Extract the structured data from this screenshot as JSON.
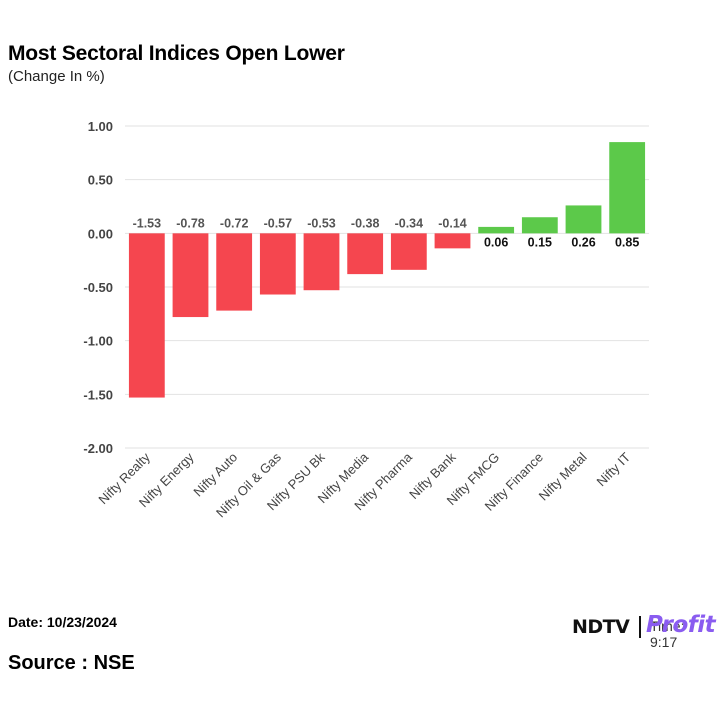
{
  "header": {
    "title": "Most Sectoral Indices Open Lower",
    "subtitle": "(Change In %)"
  },
  "footer": {
    "date": "Date: 10/23/2024",
    "source": "Source : NSE",
    "time": "Time: 9:17"
  },
  "brand": {
    "ndtv": "NDTV",
    "profit": "Profit"
  },
  "colors": {
    "negative": "#f5464f",
    "positive": "#5cc94a",
    "grid": "#e2e2e2"
  },
  "chart_data": {
    "type": "bar",
    "title": "Most Sectoral Indices Open Lower",
    "subtitle": "(Change In %)",
    "categories": [
      "Nifty Realty",
      "Nifty Energy",
      "Nifty Auto",
      "Nifty Oil & Gas",
      "Nifty PSU Bk",
      "Nifty Media",
      "Nifty Pharma",
      "Nifty Bank",
      "Nifty FMCG",
      "Nifty Finance",
      "Nifty Metal",
      "Nifty IT"
    ],
    "values": [
      -1.53,
      -0.78,
      -0.72,
      -0.57,
      -0.53,
      -0.38,
      -0.34,
      -0.14,
      0.06,
      0.15,
      0.26,
      0.85
    ],
    "value_labels": [
      "-1.53",
      "-0.78",
      "-0.72",
      "-0.57",
      "-0.53",
      "-0.38",
      "-0.34",
      "-0.14",
      "0.06",
      "0.15",
      "0.26",
      "0.85"
    ],
    "ylim": [
      -2.0,
      1.0
    ],
    "yticks": [
      1.0,
      0.5,
      0.0,
      -0.5,
      -1.0,
      -1.5,
      -2.0
    ],
    "ytick_labels": [
      "1.00",
      "0.50",
      "0.00",
      "-0.50",
      "-1.00",
      "-1.50",
      "-2.00"
    ],
    "grid": true,
    "legend": "none"
  }
}
